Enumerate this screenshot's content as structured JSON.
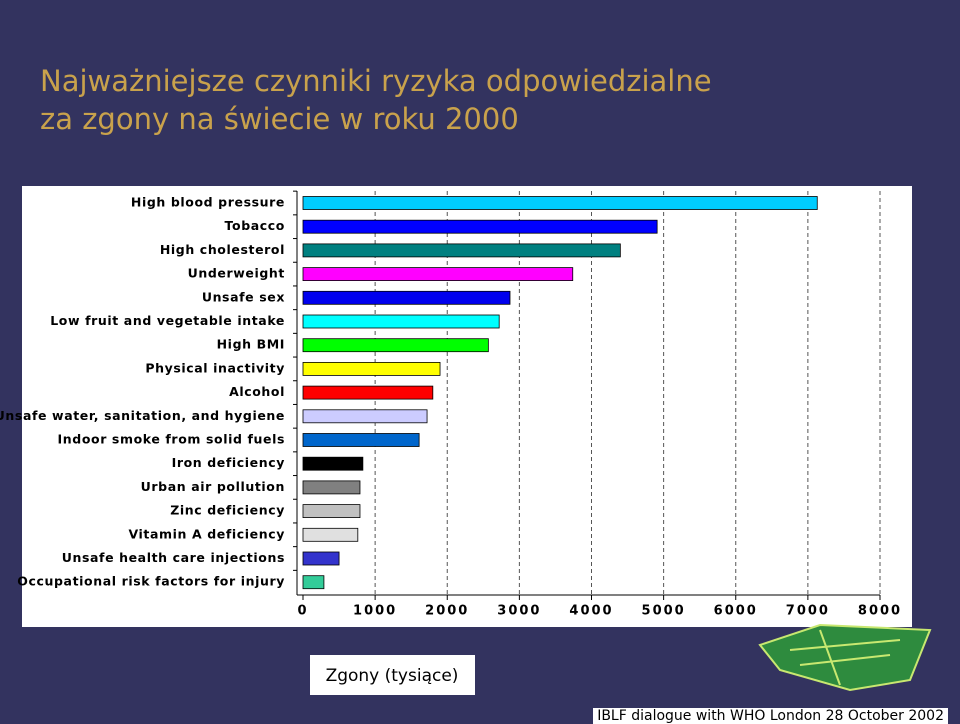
{
  "chart_data": {
    "type": "bar",
    "orientation": "horizontal",
    "title": "Najważniejsze czynniki ryzyka odpowiedzialne za zgony na świecie w roku 2000",
    "xlabel": "Zgony (tysiące)",
    "categories": [
      "High blood pressure",
      "Tobacco",
      "High cholesterol",
      "Underweight",
      "Unsafe sex",
      "Low fruit and vegetable intake",
      "High BMI",
      "Physical inactivity",
      "Alcohol",
      "Unsafe water, sanitation, and hygiene",
      "Indoor smoke from solid fuels",
      "Iron deficiency",
      "Urban air pollution",
      "Zinc deficiency",
      "Vitamin A deficiency",
      "Unsafe health care injections",
      "Occupational risk factors for injury"
    ],
    "values": [
      7130,
      4910,
      4400,
      3740,
      2870,
      2720,
      2570,
      1900,
      1800,
      1720,
      1610,
      830,
      790,
      790,
      760,
      500,
      290
    ],
    "colors": [
      "#00ccff",
      "#0000ff",
      "#008080",
      "#ff00ff",
      "#0000ee",
      "#00ffff",
      "#00ff00",
      "#ffff00",
      "#ff0000",
      "#ccccff",
      "#0066cc",
      "#000000",
      "#808080",
      "#c0c0c0",
      "#e0e0e0",
      "#3333cc",
      "#33cc99"
    ],
    "xlim": [
      0,
      8000
    ],
    "xticks": [
      0,
      1000,
      2000,
      3000,
      4000,
      5000,
      6000,
      7000,
      8000
    ],
    "grid": true
  },
  "footer": "IBLF dialogue with WHO London 28 October 2002"
}
